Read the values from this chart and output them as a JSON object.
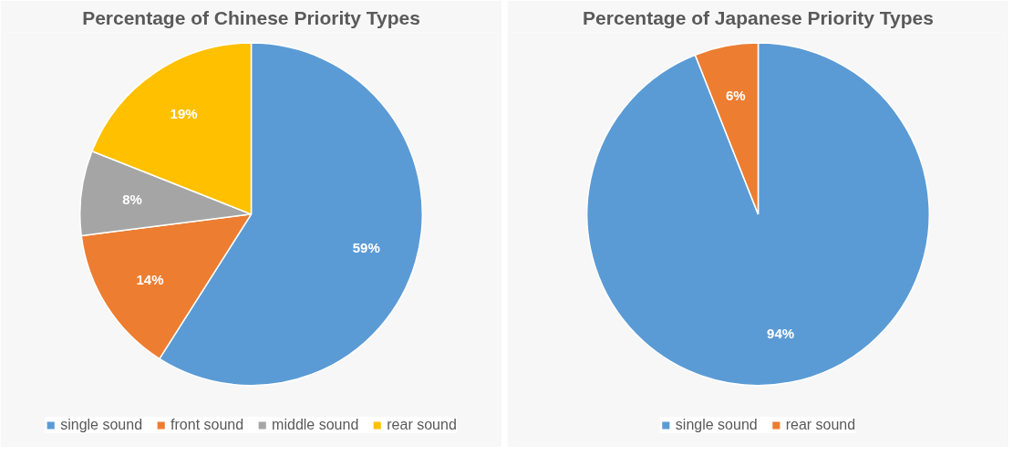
{
  "chart_data": [
    {
      "type": "pie",
      "title": "Percentage of Chinese Priority Types",
      "categories": [
        "single sound",
        "front sound",
        "middle sound",
        "rear sound"
      ],
      "values": [
        59,
        14,
        8,
        19
      ],
      "colors": [
        "#5b9bd5",
        "#ed7d31",
        "#a5a5a5",
        "#ffc000"
      ],
      "value_labels": [
        "59%",
        "14%",
        "8%",
        "19%"
      ],
      "legend": "bottom"
    },
    {
      "type": "pie",
      "title": "Percentage of Japanese Priority Types",
      "categories": [
        "single sound",
        "rear sound"
      ],
      "values": [
        94,
        6
      ],
      "colors": [
        "#5b9bd5",
        "#ed7d31"
      ],
      "value_labels": [
        "94%",
        "6%"
      ],
      "legend": "bottom"
    }
  ]
}
